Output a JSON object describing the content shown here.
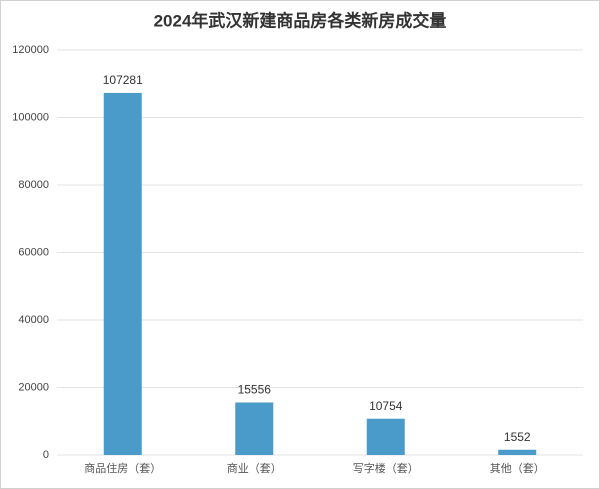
{
  "chart_data": {
    "type": "bar",
    "title": "2024年武汉新建商品房各类新房成交量",
    "categories": [
      "商品住房（套）",
      "商业（套）",
      "写字楼（套）",
      "其他（套）"
    ],
    "values": [
      107281,
      15556,
      10754,
      1552
    ],
    "color": "#4a9bc9",
    "ylim": [
      0,
      120000
    ],
    "yticks": [
      0,
      20000,
      40000,
      60000,
      80000,
      100000,
      120000
    ],
    "grid": true
  }
}
